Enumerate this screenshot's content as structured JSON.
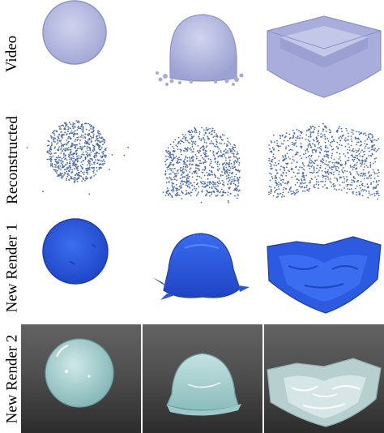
{
  "figure": {
    "row_labels": [
      "Video",
      "Reconstructed",
      "New Render 1",
      "New Render 2"
    ],
    "colors": {
      "video_fill": "#b9bde0",
      "video_edge": "#8c92c8",
      "particle": "#4a6aa8",
      "render1_fill": "#2f5fe0",
      "render1_dark": "#1d3fb8",
      "render2_fill": "#b6dcdc",
      "render2_dark": "#7fb3b4",
      "render2_bg": "#4f4f4f"
    },
    "columns": [
      "sphere",
      "dome",
      "square-basin"
    ]
  }
}
